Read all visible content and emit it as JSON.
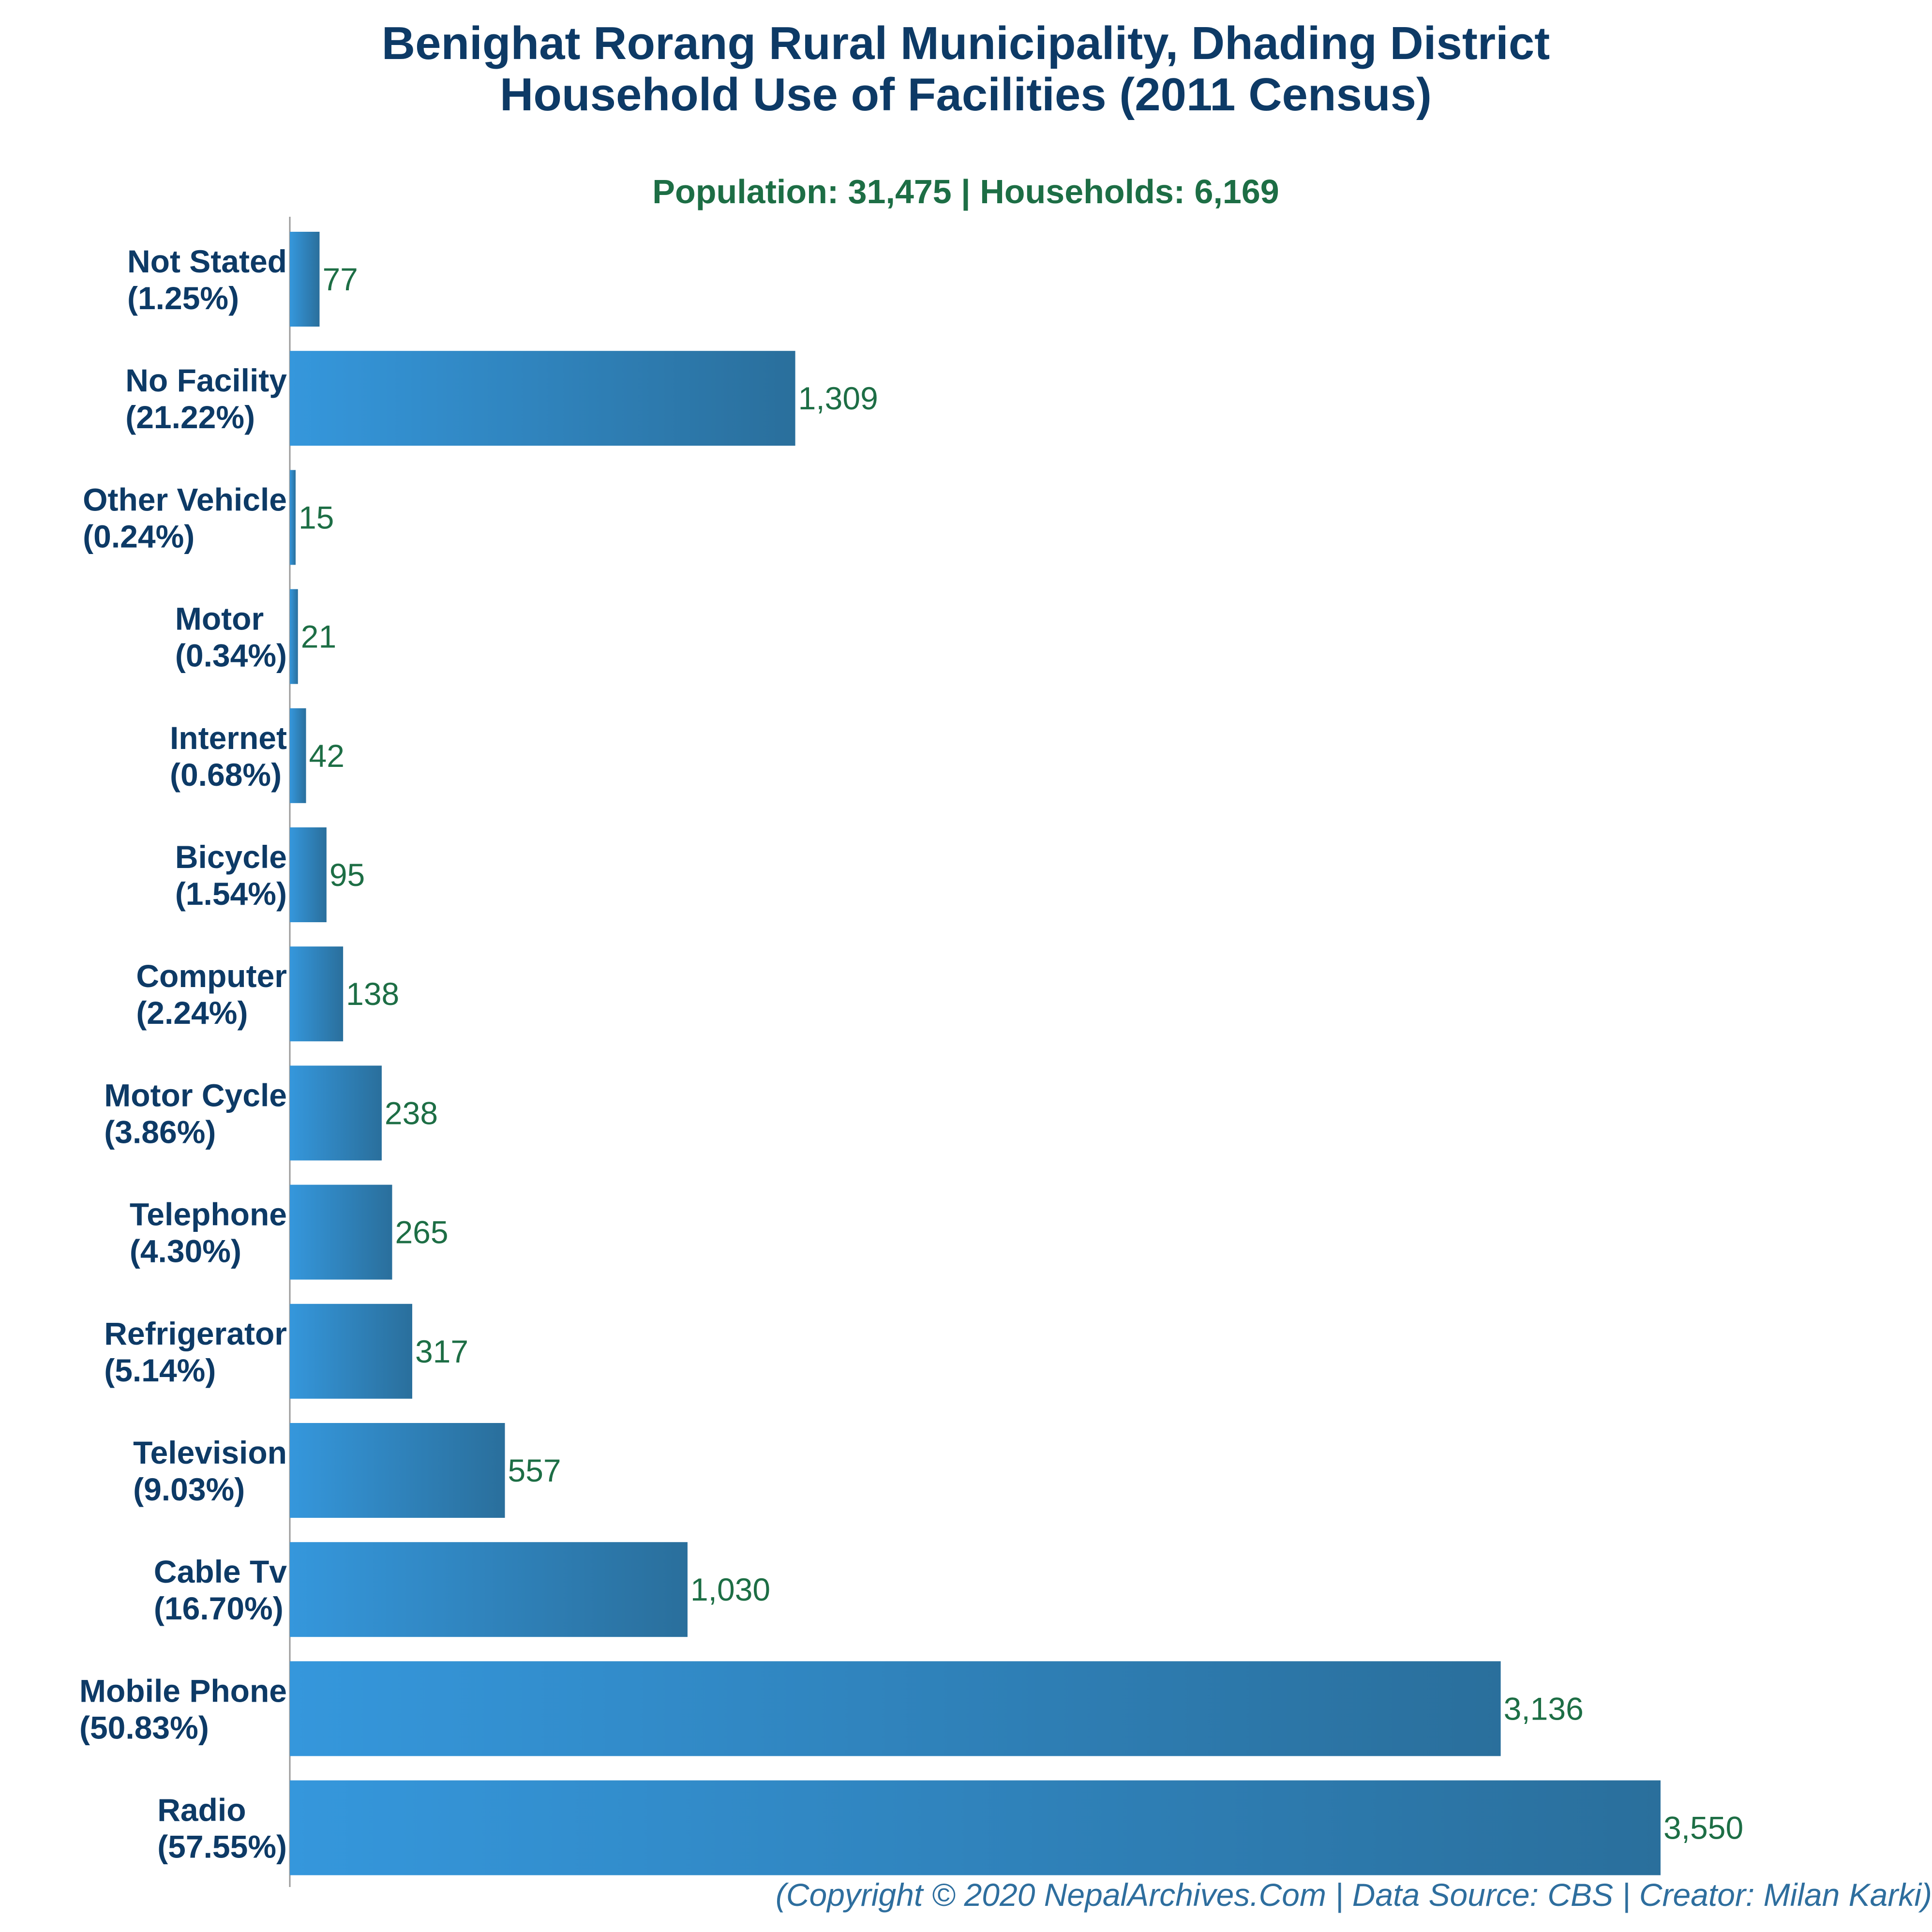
{
  "chart_data": {
    "type": "bar",
    "orientation": "horizontal",
    "title_lines": [
      "Benighat Rorang Rural Municipality, Dhading District",
      "Household Use of Facilities (2011 Census)"
    ],
    "subtitle": "Population: 31,475 | Households: 6,169",
    "xlabel": "",
    "ylabel": "",
    "xlim": [
      0,
      3550
    ],
    "grid": false,
    "categories": [
      {
        "name": "Not Stated",
        "pct": "(1.25%)"
      },
      {
        "name": "No Facility",
        "pct": "(21.22%)"
      },
      {
        "name": "Other Vehicle",
        "pct": "(0.24%)"
      },
      {
        "name": "Motor",
        "pct": "(0.34%)"
      },
      {
        "name": "Internet",
        "pct": "(0.68%)"
      },
      {
        "name": "Bicycle",
        "pct": "(1.54%)"
      },
      {
        "name": "Computer",
        "pct": "(2.24%)"
      },
      {
        "name": "Motor Cycle",
        "pct": "(3.86%)"
      },
      {
        "name": "Telephone",
        "pct": "(4.30%)"
      },
      {
        "name": "Refrigerator",
        "pct": "(5.14%)"
      },
      {
        "name": "Television",
        "pct": "(9.03%)"
      },
      {
        "name": "Cable Tv",
        "pct": "(16.70%)"
      },
      {
        "name": "Mobile Phone",
        "pct": "(50.83%)"
      },
      {
        "name": "Radio",
        "pct": "(57.55%)"
      }
    ],
    "values": [
      77,
      1309,
      15,
      21,
      42,
      95,
      138,
      238,
      265,
      317,
      557,
      1030,
      3136,
      3550
    ],
    "value_labels": [
      "77",
      "1,309",
      "15",
      "21",
      "42",
      "95",
      "138",
      "238",
      "265",
      "317",
      "557",
      "1,030",
      "3,136",
      "3,550"
    ],
    "footer": "(Copyright © 2020 NepalArchives.Com | Data Source: CBS | Creator: Milan Karki)",
    "colors": {
      "title": "#0d3a66",
      "subtitle": "#1d6e45",
      "value_label": "#1d6e45",
      "bar_start": "#3597dc",
      "bar_end": "#2a6f9c",
      "footer": "#2e6e9e",
      "axis": "#9a9a9a"
    }
  }
}
